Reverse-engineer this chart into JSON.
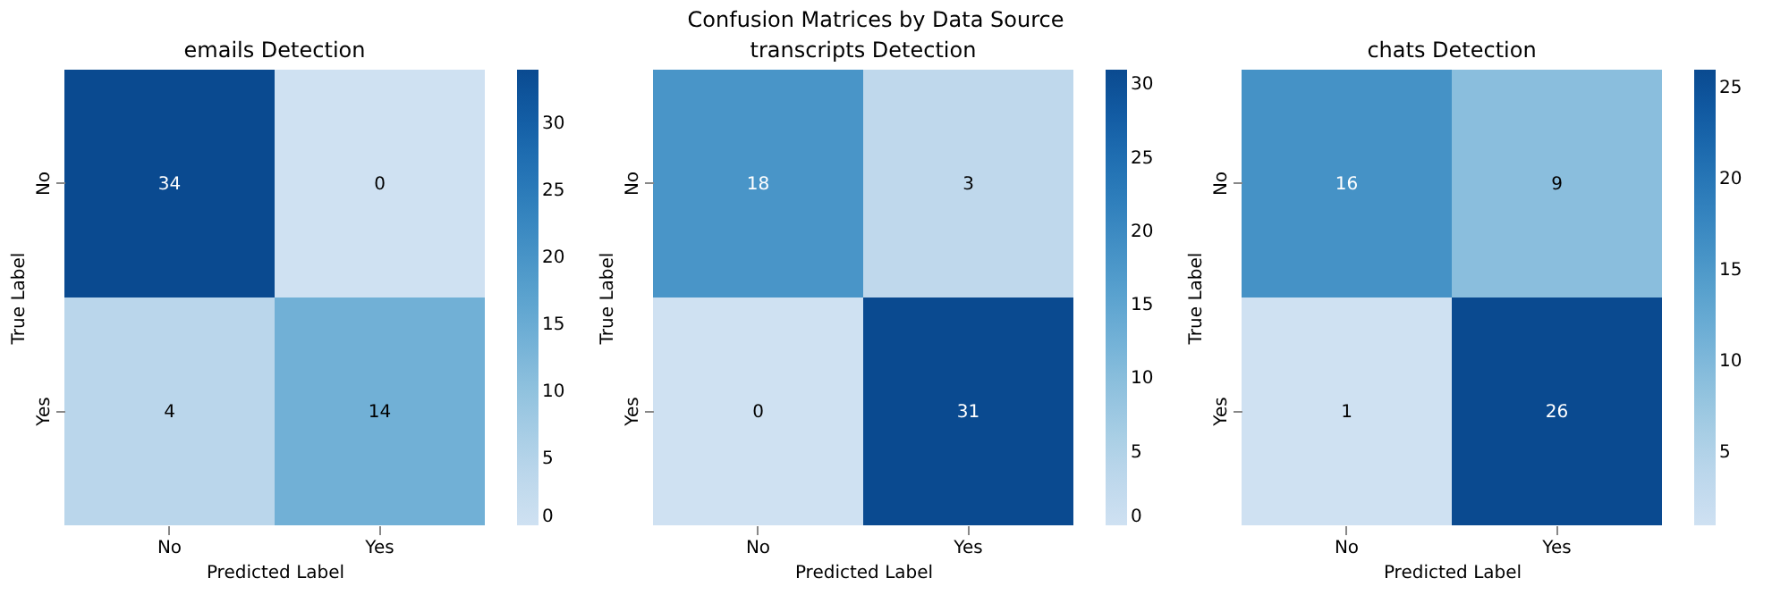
{
  "chart_data": [
    {
      "type": "heatmap",
      "title": "emails Detection",
      "xlabel": "Predicted Label",
      "ylabel": "True Label",
      "annotations": [
        "Confusion Matrices by Data Source"
      ],
      "categories": [
        "No",
        "Yes"
      ],
      "y_categories": [
        "No",
        "Yes"
      ],
      "cells": [
        [
          34,
          0
        ],
        [
          4,
          14
        ]
      ],
      "clim": [
        0,
        34
      ],
      "cticks": [
        0,
        5,
        10,
        15,
        20,
        25,
        30
      ],
      "data_labels": true
    },
    {
      "type": "heatmap",
      "title": "transcripts Detection",
      "xlabel": "Predicted Label",
      "ylabel": "True Label",
      "categories": [
        "No",
        "Yes"
      ],
      "y_categories": [
        "No",
        "Yes"
      ],
      "cells": [
        [
          18,
          3
        ],
        [
          0,
          31
        ]
      ],
      "clim": [
        0,
        31
      ],
      "cticks": [
        0,
        5,
        10,
        15,
        20,
        25,
        30
      ],
      "data_labels": true
    },
    {
      "type": "heatmap",
      "title": "chats Detection",
      "xlabel": "Predicted Label",
      "ylabel": "True Label",
      "categories": [
        "No",
        "Yes"
      ],
      "y_categories": [
        "No",
        "Yes"
      ],
      "cells": [
        [
          16,
          9
        ],
        [
          1,
          26
        ]
      ],
      "clim": [
        1,
        26
      ],
      "cticks": [
        5,
        10,
        15,
        20,
        25
      ],
      "data_labels": true
    }
  ]
}
